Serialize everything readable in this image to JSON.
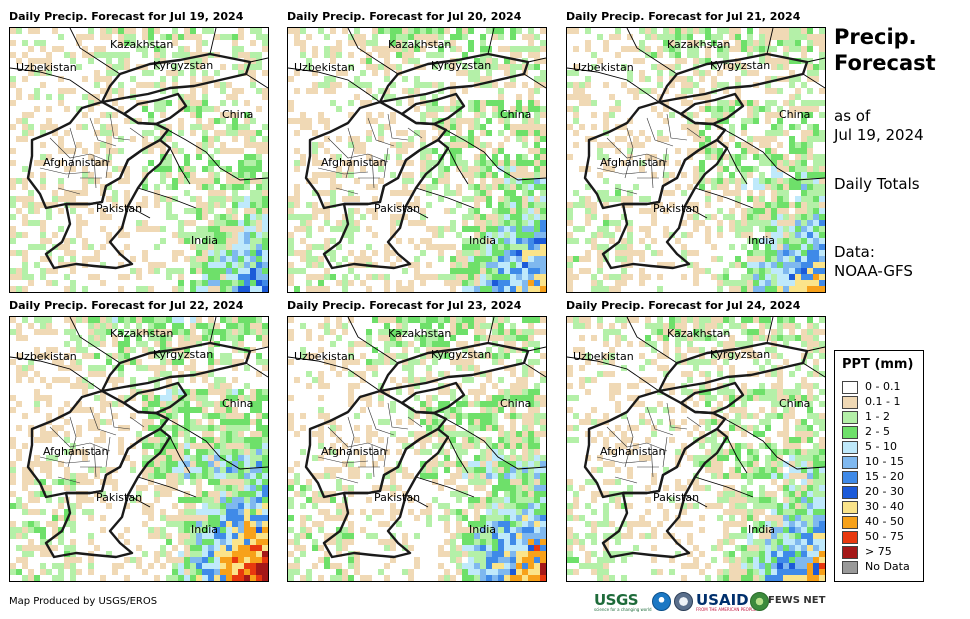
{
  "panels": [
    {
      "title": "Daily Precip. Forecast for Jul 19, 2024",
      "intensity": 1
    },
    {
      "title": "Daily Precip. Forecast for Jul 20, 2024",
      "intensity": 2
    },
    {
      "title": "Daily Precip. Forecast for Jul 21, 2024",
      "intensity": 2
    },
    {
      "title": "Daily Precip. Forecast for Jul 22, 2024",
      "intensity": 4
    },
    {
      "title": "Daily Precip. Forecast for Jul 23, 2024",
      "intensity": 3
    },
    {
      "title": "Daily Precip. Forecast for Jul 24, 2024",
      "intensity": 2
    }
  ],
  "map_labels": {
    "kazakhstan": "Kazakhstan",
    "uzbekistan": "Uzbekistan",
    "kyrgyzstan": "Kyrgyzstan",
    "china": "China",
    "afghanistan": "Afghanistan",
    "pakistan": "Pakistan",
    "india": "India"
  },
  "sidebar": {
    "title_line1": "Precip.",
    "title_line2": "Forecast",
    "asof_line1": "as of",
    "asof_line2": "Jul 19, 2024",
    "totals": "Daily Totals",
    "data_line1": "Data:",
    "data_line2": "NOAA-GFS"
  },
  "legend": {
    "title": "PPT (mm)",
    "items": [
      {
        "label": "0 - 0.1",
        "color": "#ffffff"
      },
      {
        "label": "0.1 - 1",
        "color": "#f0d9b5"
      },
      {
        "label": "1 - 2",
        "color": "#b4f0a8"
      },
      {
        "label": "2 - 5",
        "color": "#6ee06a"
      },
      {
        "label": "5 - 10",
        "color": "#bfe9fb"
      },
      {
        "label": "10 - 15",
        "color": "#7fb8ef"
      },
      {
        "label": "15 - 20",
        "color": "#3f8ae8"
      },
      {
        "label": "20 - 30",
        "color": "#1c5ad8"
      },
      {
        "label": "30 - 40",
        "color": "#fbe48a"
      },
      {
        "label": "40 - 50",
        "color": "#f7a11a"
      },
      {
        "label": "50 - 75",
        "color": "#e8380e"
      },
      {
        "label": "> 75",
        "color": "#a41818"
      },
      {
        "label": "No Data",
        "color": "#999999"
      }
    ]
  },
  "footer": {
    "credit": "Map Produced by USGS/EROS",
    "logos": {
      "usgs": "USGS",
      "usgs_tagline": "science for a changing world",
      "usaid": "USAID",
      "usaid_tagline": "FROM THE AMERICAN PEOPLE",
      "fews": "FEWS NET"
    }
  }
}
